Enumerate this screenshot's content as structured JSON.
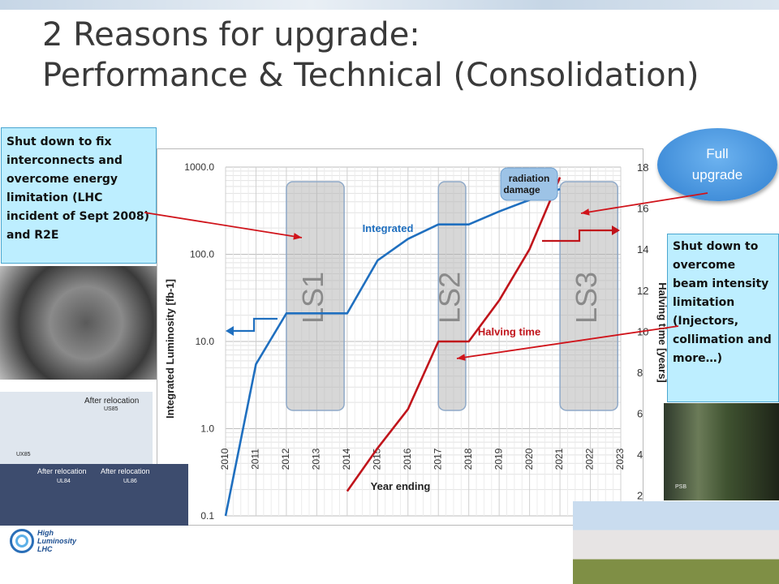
{
  "slide": {
    "title_line1": "2 Reasons for upgrade:",
    "title_line2": "Performance & Technical (Consolidation)",
    "callout_left": "Shut down to fix interconnects and overcome energy limitation (LHC incident of Sept 2008) and R2E",
    "callout_right": "Shut down to overcome beam intensity limitation (Injectors, collimation and more…)",
    "oval_line1": "Full",
    "oval_line2": "upgrade",
    "photo_labels": [
      "After relocation",
      "US85",
      "UX85",
      "After relocation",
      "UL84",
      "After relocation",
      "UL86",
      "PSB"
    ],
    "logo": [
      "High",
      "Luminosity",
      "LHC"
    ]
  },
  "chart_data": {
    "type": "line",
    "xlabel": "Year ending",
    "ylabel": "Integrated Luminosity [fb-1]",
    "y2label": "Halving time [years]",
    "yscale": "log",
    "ylim": [
      0.1,
      1000
    ],
    "y2lim": [
      1,
      18
    ],
    "x_ticks": [
      "2010",
      "2011",
      "2012",
      "2013",
      "2014",
      "2015",
      "2016",
      "2017",
      "2018",
      "2019",
      "2020",
      "2021",
      "2022",
      "2023"
    ],
    "y_ticks": [
      "1000.0",
      "100.0",
      "10.0",
      "1.0",
      "0.1"
    ],
    "y2_ticks": [
      "18",
      "16",
      "14",
      "12",
      "10",
      "8",
      "6",
      "4",
      "2"
    ],
    "shutdowns": [
      {
        "label": "LS1",
        "start": 2012.0,
        "end": 2013.9
      },
      {
        "label": "LS2",
        "start": 2017.0,
        "end": 2017.9
      },
      {
        "label": "LS3",
        "start": 2021.0,
        "end": 2022.9
      }
    ],
    "annotations": [
      "radiation damage"
    ],
    "series": [
      {
        "name": "Integrated",
        "axis": "left",
        "color": "#1f6fbf",
        "x": [
          2010,
          2011,
          2012,
          2013,
          2014,
          2015,
          2016,
          2017,
          2018,
          2019,
          2020,
          2021
        ],
        "y": [
          0.1,
          5.5,
          21,
          21,
          21,
          85,
          150,
          220,
          220,
          310,
          420,
          560
        ]
      },
      {
        "name": "Halving time",
        "axis": "right",
        "color": "#c0141b",
        "x": [
          2014,
          2015,
          2016,
          2017,
          2018,
          2019,
          2020,
          2021
        ],
        "y": [
          2.2,
          4.3,
          6.2,
          9.5,
          9.5,
          11.5,
          14.0,
          17.5
        ]
      }
    ]
  }
}
